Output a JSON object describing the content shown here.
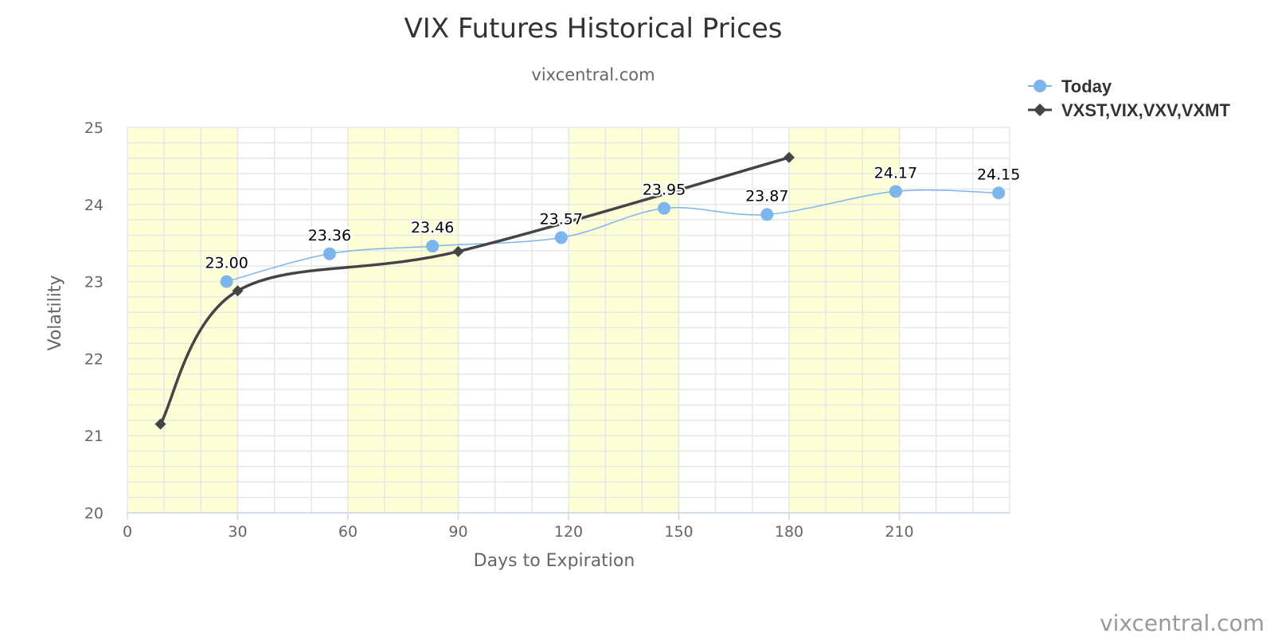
{
  "chart_data": {
    "type": "line",
    "title": "VIX Futures Historical Prices",
    "subtitle": "vixcentral.com",
    "xlabel": "Days to Expiration",
    "ylabel": "Volatility",
    "xlim": [
      0,
      240
    ],
    "ylim": [
      20,
      25
    ],
    "x_ticks": [
      0,
      30,
      60,
      90,
      120,
      150,
      180,
      210
    ],
    "y_ticks": [
      20,
      21,
      22,
      23,
      24,
      25
    ],
    "x_minor_step": 10,
    "y_minor_step": 0.2,
    "grid": true,
    "shaded_bands": [
      [
        0,
        30
      ],
      [
        60,
        90
      ],
      [
        120,
        150
      ],
      [
        180,
        210
      ]
    ],
    "band_color": "#ffffd6",
    "legend_position": "top-right",
    "series": [
      {
        "name": "Today",
        "color": "#7cb5ec",
        "marker": "circle",
        "line_width": 1.5,
        "x": [
          27,
          55,
          83,
          118,
          146,
          174,
          209,
          237
        ],
        "y": [
          23.0,
          23.36,
          23.46,
          23.57,
          23.95,
          23.87,
          24.17,
          24.15
        ],
        "labels": [
          "23.00",
          "23.36",
          "23.46",
          "23.57",
          "23.95",
          "23.87",
          "24.17",
          "24.15"
        ]
      },
      {
        "name": "VXST,VIX,VXV,VXMT",
        "color": "#434348",
        "marker": "diamond",
        "line_width": 3.5,
        "x": [
          9,
          30,
          90,
          180
        ],
        "y": [
          21.15,
          22.88,
          23.39,
          24.61
        ]
      }
    ],
    "credit": "vixcentral.com"
  }
}
